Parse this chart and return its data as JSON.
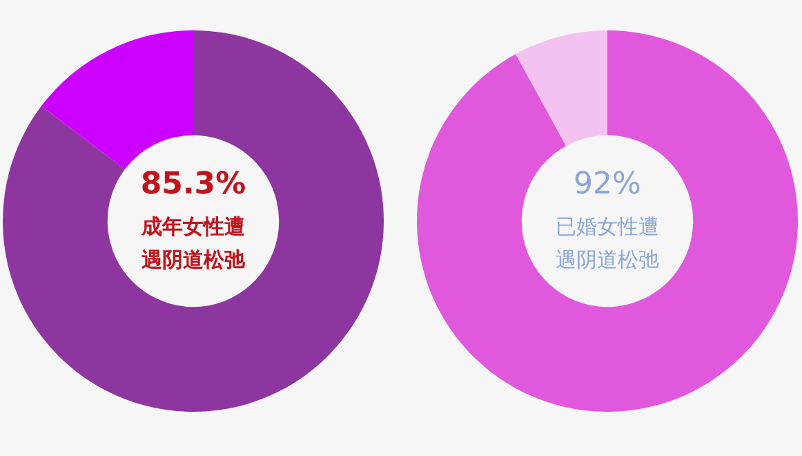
{
  "chart_data": [
    {
      "type": "donut",
      "categories": [
        "成年女性遭遇阴道松弛",
        null
      ],
      "values": [
        85.3,
        14.7
      ],
      "colors": [
        "#8e36a0",
        "#cc00ff"
      ],
      "value_labels": [
        "85.3%",
        null
      ]
    },
    {
      "type": "donut",
      "categories": [
        "已婚女性遭遇阴道松弛",
        null
      ],
      "values": [
        92,
        8
      ],
      "colors": [
        "#e059dc",
        "#f4c2f0"
      ],
      "value_labels": [
        "92%",
        null
      ]
    }
  ]
}
